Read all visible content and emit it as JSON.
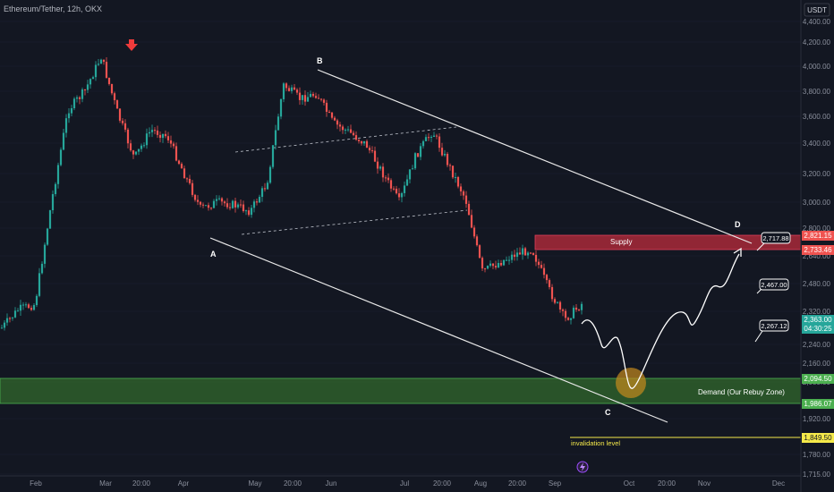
{
  "header": {
    "title": "Ethereum/Tether, 12h, OKX"
  },
  "currency": {
    "label": "USDT"
  },
  "colors": {
    "background": "#131722",
    "up": "#26a69a",
    "down": "#ef5350",
    "supply": "#b22a3b",
    "demand": "#2e5e2a",
    "white": "#ffffff",
    "invalidation": "#f5e94a",
    "circle": "#c58a1c"
  },
  "icons": {
    "peak_marker": "red-down-arrow-icon",
    "event_marker": "lightning-icon"
  },
  "chart_data": {
    "type": "candlestick",
    "xlabel": "",
    "ylabel": "",
    "ylim": [
      1700,
      4500
    ],
    "x_ticks": [
      "Feb",
      "Mar",
      "20:00",
      "Apr",
      "May",
      "20:00",
      "Jun",
      "Jul",
      "20:00",
      "Aug",
      "20:00",
      "Sep",
      "Oct",
      "20:00",
      "Nov",
      "Dec"
    ],
    "y_ticks": [
      "4,400.00",
      "4,200.00",
      "4,000.00",
      "3,800.00",
      "3,600.00",
      "3,400.00",
      "3,200.00",
      "3,000.00",
      "2,800.00",
      "2,640.00",
      "2,480.00",
      "2,320.00",
      "2,240.00",
      "2,160.00",
      "2,080.00",
      "1,920.00",
      "1,780.00",
      "1,715.00"
    ],
    "price_series": {
      "name": "",
      "points": [
        {
          "x": "Feb",
          "y": 2280
        },
        {
          "x": "Feb",
          "y": 2330
        },
        {
          "x": "Feb",
          "y": 2360
        },
        {
          "x": "Mar",
          "y": 3000
        },
        {
          "x": "Mar",
          "y": 3650
        },
        {
          "x": "Mar",
          "y": 3800
        },
        {
          "x": "Mar",
          "y": 4080
        },
        {
          "x": "20:00",
          "y": 3620
        },
        {
          "x": "20:00",
          "y": 3300
        },
        {
          "x": "20:00",
          "y": 3500
        },
        {
          "x": "Apr",
          "y": 3450
        },
        {
          "x": "Apr",
          "y": 3200
        },
        {
          "x": "Apr",
          "y": 2950
        },
        {
          "x": "Apr",
          "y": 3000
        },
        {
          "x": "May",
          "y": 2980
        },
        {
          "x": "May",
          "y": 2930
        },
        {
          "x": "May",
          "y": 3130
        },
        {
          "x": "20:00",
          "y": 3850
        },
        {
          "x": "20:00",
          "y": 3740
        },
        {
          "x": "Jun",
          "y": 3780
        },
        {
          "x": "Jun",
          "y": 3550
        },
        {
          "x": "Jun",
          "y": 3480
        },
        {
          "x": "Jul",
          "y": 3390
        },
        {
          "x": "Jul",
          "y": 3200
        },
        {
          "x": "Jul",
          "y": 3000
        },
        {
          "x": "20:00",
          "y": 3320
        },
        {
          "x": "20:00",
          "y": 3490
        },
        {
          "x": "20:00",
          "y": 3250
        },
        {
          "x": "Aug",
          "y": 3020
        },
        {
          "x": "Aug",
          "y": 2550
        },
        {
          "x": "Aug",
          "y": 2600
        },
        {
          "x": "20:00",
          "y": 2650
        },
        {
          "x": "20:00",
          "y": 2680
        },
        {
          "x": "Sep",
          "y": 2450
        },
        {
          "x": "Sep",
          "y": 2300
        },
        {
          "x": "Sep",
          "y": 2363
        }
      ]
    },
    "current_price": {
      "value": "2,363.00",
      "countdown": "04:30:25"
    },
    "price_labels": [
      {
        "value": "2,821.15",
        "color": "#ef5350"
      },
      {
        "value": "2,733.46",
        "color": "#ef5350"
      },
      {
        "value": "2,094.50",
        "color": "#4caf50"
      },
      {
        "value": "1,986.07",
        "color": "#4caf50"
      },
      {
        "value": "1,849.50",
        "color": "#f5e94a"
      }
    ],
    "callouts": [
      "2,717.88",
      "2,467.00",
      "2,267.12"
    ],
    "zones": [
      {
        "name": "Supply",
        "from": 2733.46,
        "to": 2821.15
      },
      {
        "name": "Demand (Our Rebuy Zone)",
        "from": 1986.07,
        "to": 2094.5
      }
    ],
    "invalidation": {
      "label": "invalidation level",
      "value": 1849.5
    },
    "wave_points": [
      {
        "label": "A",
        "price": 2800
      },
      {
        "label": "B",
        "price": 3980
      },
      {
        "label": "C",
        "price": 1960
      },
      {
        "label": "D",
        "price": 2760
      }
    ],
    "projection": {
      "target": 2717.88,
      "low": 2045
    }
  }
}
